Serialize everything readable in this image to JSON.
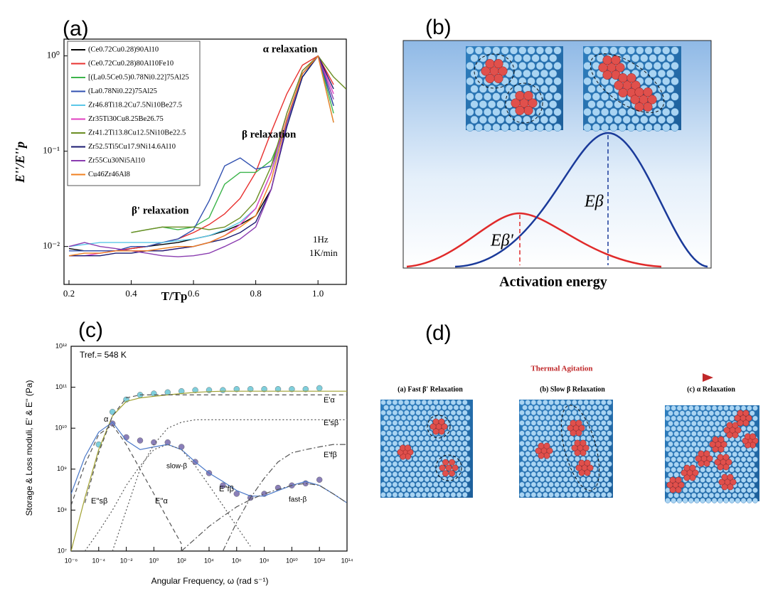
{
  "chart_data": [
    {
      "type": "line",
      "panel_label": "(a)",
      "xlabel": "T/Tp",
      "ylabel": "E''/E''p",
      "xlim": [
        0.184,
        1.091
      ],
      "ylim": [
        0.004,
        1.5
      ],
      "ylog": true,
      "xticks": [
        0.2,
        0.4,
        0.6,
        0.8,
        {
          "value": 1,
          "label": "1.0"
        }
      ],
      "yticks": [
        {
          "value": 0.01,
          "label": "10⁻²"
        },
        {
          "value": 0.1,
          "label": "10⁻¹"
        },
        {
          "value": 1,
          "label": "10⁰"
        }
      ],
      "legend": "upper left",
      "annotations": [
        "α relaxation",
        "β relaxation",
        "β' relaxation",
        "1Hz",
        "1K/min"
      ],
      "x": [
        0.2,
        0.25,
        0.3,
        0.35,
        0.4,
        0.45,
        0.5,
        0.55,
        0.6,
        0.65,
        0.7,
        0.75,
        0.8,
        0.85,
        0.9,
        0.95,
        1.0,
        1.05,
        1.09
      ],
      "series": [
        {
          "name": "(Ce0.72Cu0.28)90Al10",
          "color": "#000000",
          "values": [
            0.0095,
            0.009,
            0.009,
            0.009,
            0.0095,
            0.01,
            0.0105,
            0.011,
            0.012,
            0.013,
            0.0145,
            0.017,
            0.021,
            0.04,
            0.2,
            0.65,
            1.0,
            0.3,
            null
          ]
        },
        {
          "name": "(Ce0.72Cu0.28)80Al10Fe10",
          "color": "#e8312f",
          "values": [
            null,
            null,
            0.009,
            0.009,
            0.0095,
            0.01,
            0.011,
            0.012,
            0.014,
            0.017,
            0.022,
            0.032,
            0.06,
            0.16,
            0.4,
            0.8,
            1.0,
            0.5,
            null
          ]
        },
        {
          "name": "[(La0.5Ce0.5)0.78Ni0.22]75Al25",
          "color": "#3cb44b",
          "values": [
            null,
            null,
            null,
            null,
            0.014,
            0.015,
            0.016,
            0.015,
            0.016,
            0.02,
            0.045,
            0.06,
            0.06,
            0.08,
            0.2,
            0.6,
            1.0,
            0.25,
            null
          ]
        },
        {
          "name": "(La0.78Ni0.22)75Al25",
          "color": "#3050b0",
          "values": [
            0.009,
            0.009,
            0.009,
            0.009,
            0.01,
            0.01,
            0.011,
            0.012,
            0.015,
            0.03,
            0.07,
            0.085,
            0.065,
            0.07,
            0.2,
            0.6,
            1.0,
            0.3,
            null
          ]
        },
        {
          "name": "Zr46.8Ti18.2Cu7.5Ni10Be27.5",
          "color": "#5bc8e8",
          "values": [
            0.01,
            0.0105,
            0.011,
            0.011,
            0.011,
            0.011,
            0.011,
            0.0115,
            0.012,
            0.013,
            0.015,
            0.018,
            0.025,
            0.06,
            0.2,
            0.6,
            1.0,
            0.2,
            null
          ]
        },
        {
          "name": "Zr35Ti30Cu8.25Be26.75",
          "color": "#e040c0",
          "values": [
            0.008,
            0.008,
            0.0085,
            0.009,
            0.009,
            0.009,
            0.009,
            0.0095,
            0.01,
            0.011,
            0.013,
            0.017,
            0.025,
            0.06,
            0.25,
            0.7,
            1.0,
            0.4,
            null
          ]
        },
        {
          "name": "Zr41.2Ti13.8Cu12.5Ni10Be22.5",
          "color": "#6b8e23",
          "values": [
            null,
            null,
            null,
            null,
            0.014,
            0.015,
            0.016,
            0.016,
            0.016,
            0.015,
            0.016,
            0.02,
            0.03,
            0.07,
            0.25,
            0.7,
            1.0,
            0.6,
            0.45
          ]
        },
        {
          "name": "Zr52.5Ti5Cu17.9Ni14.6Al10",
          "color": "#1a1a70",
          "values": [
            0.008,
            0.008,
            0.008,
            0.0085,
            0.0085,
            0.009,
            0.009,
            0.0095,
            0.01,
            0.011,
            0.012,
            0.014,
            0.018,
            0.04,
            0.18,
            0.6,
            1.0,
            0.45,
            null
          ]
        },
        {
          "name": "Zr55Cu30Ni5Al10",
          "color": "#8a3cb0",
          "values": [
            0.01,
            0.011,
            0.01,
            0.0095,
            0.009,
            0.0085,
            0.008,
            0.0078,
            0.008,
            0.0085,
            0.01,
            0.012,
            0.016,
            0.04,
            0.2,
            0.65,
            1.0,
            0.35,
            null
          ]
        },
        {
          "name": "Cu46Zr46Al8",
          "color": "#f08020",
          "values": [
            0.008,
            0.0085,
            0.0085,
            0.009,
            0.009,
            0.009,
            0.0095,
            0.01,
            0.01,
            0.011,
            0.013,
            0.016,
            0.021,
            0.05,
            0.22,
            0.65,
            1.0,
            0.2,
            null
          ]
        }
      ]
    },
    {
      "type": "line",
      "panel_label": "(c)",
      "xlabel": "Angular Frequency, ω (rad s⁻¹)",
      "ylabel": "Storage & Loss moduli, E' & E'' (Pa)",
      "xlim": [
        1e-06,
        100000000000000.0
      ],
      "ylim": [
        10000000.0,
        1000000000000.0
      ],
      "xlog": true,
      "ylog": true,
      "xticks": [
        {
          "value": 1e-06,
          "label": "10⁻⁶"
        },
        {
          "value": 0.0001,
          "label": "10⁻⁴"
        },
        {
          "value": 0.01,
          "label": "10⁻²"
        },
        {
          "value": 1,
          "label": "10⁰"
        },
        {
          "value": 100,
          "label": "10²"
        },
        {
          "value": 10000,
          "label": "10⁴"
        },
        {
          "value": 1000000.0,
          "label": "10⁶"
        },
        {
          "value": 100000000.0,
          "label": "10⁸"
        },
        {
          "value": 10000000000.0,
          "label": "10¹⁰"
        },
        {
          "value": 1000000000000.0,
          "label": "10¹²"
        },
        {
          "value": 100000000000000.0,
          "label": "10¹⁴"
        }
      ],
      "yticks": [
        {
          "value": 10000000.0,
          "label": "10⁷"
        },
        {
          "value": 100000000.0,
          "label": "10⁸"
        },
        {
          "value": 1000000000.0,
          "label": "10⁹"
        },
        {
          "value": 10000000000.0,
          "label": "10¹⁰"
        },
        {
          "value": 100000000000.0,
          "label": "10¹¹"
        },
        {
          "value": 1000000000000.0,
          "label": "10¹²"
        }
      ],
      "annotations": [
        "Tref.= 548 K",
        "E'α",
        "E'sβ",
        "E'fβ",
        "E''sβ",
        "E''α",
        "E''fβ",
        "α",
        "slow-β",
        "fast-β"
      ],
      "x": [
        1e-06,
        1e-05,
        0.0001,
        0.001,
        0.01,
        0.1,
        1,
        10,
        100,
        1000,
        10000,
        100000.0,
        1000000.0,
        10000000.0,
        100000000.0,
        1000000000.0,
        10000000000.0,
        100000000000.0,
        1000000000000.0,
        10000000000000.0,
        100000000000000.0
      ],
      "series": [
        {
          "color": "#7fcfdc",
          "style": "markers",
          "values": [
            null,
            null,
            4000000000.0,
            25000000000.0,
            50000000000.0,
            65000000000.0,
            70000000000.0,
            75000000000.0,
            80000000000.0,
            85000000000.0,
            85000000000.0,
            85000000000.0,
            90000000000.0,
            90000000000.0,
            90000000000.0,
            90000000000.0,
            90000000000.0,
            90000000000.0,
            95000000000.0,
            null,
            null
          ]
        },
        {
          "color": "#8a7fb8",
          "style": "markers",
          "values": [
            null,
            null,
            null,
            13000000000.0,
            6000000000.0,
            5000000000.0,
            4500000000.0,
            4500000000.0,
            3500000000.0,
            1500000000.0,
            800000000.0,
            400000000.0,
            250000000.0,
            200000000.0,
            250000000.0,
            350000000.0,
            400000000.0,
            450000000.0,
            550000000.0,
            null,
            null
          ]
        },
        {
          "color": "#a0a030",
          "style": "solid",
          "values": [
            10000000.0,
            200000000.0,
            3000000000.0,
            20000000000.0,
            45000000000.0,
            55000000000.0,
            60000000000.0,
            65000000000.0,
            70000000000.0,
            75000000000.0,
            78000000000.0,
            80000000000.0,
            80000000000.0,
            80000000000.0,
            80000000000.0,
            80000000000.0,
            80000000000.0,
            80000000000.0,
            80000000000.0,
            80000000000.0,
            80000000000.0
          ]
        },
        {
          "color": "#4a78c8",
          "style": "solid",
          "values": [
            250000000.0,
            2000000000.0,
            8000000000.0,
            14000000000.0,
            5000000000.0,
            3000000000.0,
            3500000000.0,
            4000000000.0,
            3000000000.0,
            1500000000.0,
            800000000.0,
            500000000.0,
            300000000.0,
            220000000.0,
            220000000.0,
            300000000.0,
            400000000.0,
            500000000.0,
            400000000.0,
            250000000.0,
            150000000.0
          ]
        },
        {
          "color": "#555555",
          "style": "dashed",
          "values": [
            null,
            150000000.0,
            2500000000.0,
            20000000000.0,
            55000000000.0,
            65000000000.0,
            65000000000.0,
            65000000000.0,
            65000000000.0,
            65000000000.0,
            65000000000.0,
            65000000000.0,
            65000000000.0,
            65000000000.0,
            65000000000.0,
            65000000000.0,
            65000000000.0,
            65000000000.0,
            65000000000.0,
            65000000000.0,
            65000000000.0
          ]
        },
        {
          "color": "#555555",
          "style": "dotted",
          "values": [
            null,
            null,
            null,
            10000000.0,
            100000000.0,
            1000000000.0,
            4000000000.0,
            10000000000.0,
            14000000000.0,
            16000000000.0,
            16000000000.0,
            16000000000.0,
            16000000000.0,
            16000000000.0,
            16000000000.0,
            16000000000.0,
            16000000000.0,
            16000000000.0,
            16000000000.0,
            16000000000.0,
            16000000000.0
          ]
        },
        {
          "color": "#555555",
          "style": "dashdot",
          "values": [
            null,
            null,
            null,
            null,
            null,
            null,
            null,
            null,
            null,
            null,
            null,
            10000000.0,
            50000000.0,
            200000000.0,
            600000000.0,
            1500000000.0,
            2500000000.0,
            3000000000.0,
            3500000000.0,
            4000000000.0,
            4000000000.0
          ]
        },
        {
          "color": "#555555",
          "style": "dashed",
          "values": [
            130000000.0,
            1300000000.0,
            7000000000.0,
            12000000000.0,
            4000000000.0,
            1000000000.0,
            250000000.0,
            60000000.0,
            15000000.0,
            null,
            null,
            null,
            null,
            null,
            null,
            null,
            null,
            null,
            null,
            null,
            null
          ]
        },
        {
          "color": "#555555",
          "style": "dotted",
          "values": [
            null,
            10000000.0,
            30000000.0,
            100000000.0,
            400000000.0,
            1200000000.0,
            3000000000.0,
            4000000000.0,
            3000000000.0,
            1200000000.0,
            400000000.0,
            130000000.0,
            40000000.0,
            13000000.0,
            null,
            null,
            null,
            null,
            null,
            null,
            null
          ]
        },
        {
          "color": "#555555",
          "style": "dashdot",
          "values": [
            null,
            null,
            null,
            null,
            null,
            null,
            null,
            null,
            10000000.0,
            20000000.0,
            40000000.0,
            70000000.0,
            120000000.0,
            180000000.0,
            250000000.0,
            320000000.0,
            400000000.0,
            450000000.0,
            400000000.0,
            250000000.0,
            150000000.0
          ]
        }
      ]
    }
  ],
  "panel_b": {
    "label": "(b)",
    "xlabel": "Activation energy",
    "curve_labels": [
      "Eβ'",
      "Eβ"
    ]
  },
  "panel_d": {
    "label": "(d)",
    "arrow_label": "Thermal Agitation",
    "stages": [
      "(a) Fast β' Relaxation",
      "(b) Slow β Relaxation",
      "(c) α Relaxation"
    ]
  }
}
